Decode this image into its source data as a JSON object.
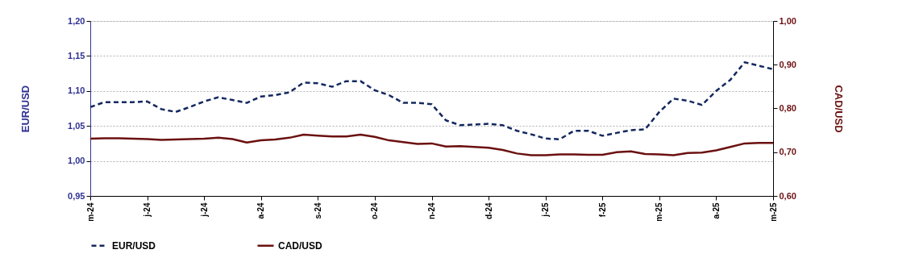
{
  "chart_data": {
    "type": "line",
    "categories": [
      "m-24",
      null,
      null,
      null,
      "j-24",
      null,
      null,
      null,
      "j-24",
      null,
      null,
      null,
      "a-24",
      null,
      null,
      null,
      "s-24",
      null,
      null,
      null,
      "o-24",
      null,
      null,
      null,
      "n-24",
      null,
      null,
      null,
      "d-24",
      null,
      null,
      null,
      "j-25",
      null,
      null,
      null,
      "f-25",
      null,
      null,
      null,
      "m-25",
      null,
      null,
      null,
      "a-25",
      null,
      null,
      null,
      "m-25"
    ],
    "series": [
      {
        "name": "EUR/USD",
        "color": "#14285f",
        "line_style": "dashed",
        "axis": "y",
        "values": [
          1.077,
          1.084,
          1.084,
          1.084,
          1.085,
          1.074,
          1.07,
          1.077,
          1.085,
          1.091,
          1.087,
          1.083,
          1.092,
          1.094,
          1.098,
          1.112,
          1.111,
          1.106,
          1.114,
          1.114,
          1.101,
          1.094,
          1.083,
          1.083,
          1.081,
          1.058,
          1.051,
          1.052,
          1.053,
          1.051,
          1.043,
          1.038,
          1.032,
          1.031,
          1.043,
          1.043,
          1.036,
          1.04,
          1.044,
          1.045,
          1.07,
          1.089,
          1.086,
          1.08,
          1.1,
          1.116,
          1.141,
          1.136,
          1.131
        ]
      },
      {
        "name": "CAD/USD",
        "color": "#6b1010",
        "line_style": "solid",
        "axis": "y2",
        "values": [
          0.731,
          0.732,
          0.732,
          0.731,
          0.73,
          0.728,
          0.729,
          0.73,
          0.731,
          0.733,
          0.73,
          0.722,
          0.727,
          0.729,
          0.733,
          0.74,
          0.738,
          0.736,
          0.736,
          0.74,
          0.735,
          0.727,
          0.723,
          0.719,
          0.72,
          0.713,
          0.714,
          0.712,
          0.71,
          0.705,
          0.697,
          0.693,
          0.693,
          0.695,
          0.695,
          0.694,
          0.694,
          0.7,
          0.702,
          0.696,
          0.695,
          0.693,
          0.698,
          0.699,
          0.704,
          0.712,
          0.72,
          0.721,
          0.721
        ]
      }
    ],
    "ylabel": "EUR/USD",
    "y2label": "CAD/USD",
    "ylim": [
      0.95,
      1.2
    ],
    "yticks": [
      {
        "value": 0.95,
        "label": "0,95"
      },
      {
        "value": 1.0,
        "label": "1,00"
      },
      {
        "value": 1.05,
        "label": "1,05"
      },
      {
        "value": 1.1,
        "label": "1,10"
      },
      {
        "value": 1.15,
        "label": "1,15"
      },
      {
        "value": 1.2,
        "label": "1,20"
      }
    ],
    "y2lim": [
      0.6,
      1.0
    ],
    "y2ticks": [
      {
        "value": 0.6,
        "label": "0,60"
      },
      {
        "value": 0.7,
        "label": "0,70"
      },
      {
        "value": 0.8,
        "label": "0,80"
      },
      {
        "value": 0.9,
        "label": "0,90"
      },
      {
        "value": 1.0,
        "label": "1,00"
      }
    ],
    "grid": "y",
    "legend": "bottom",
    "marker": "none"
  }
}
